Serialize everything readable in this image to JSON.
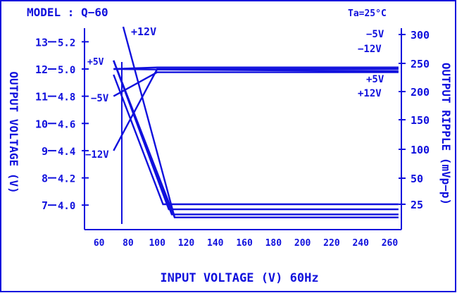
{
  "page": {
    "model": "MODEL : Q−60",
    "ambient": "Ta=25°C",
    "xlabel": "INPUT  VOLTAGE  (V)  60Hz",
    "ylabel_left": "OUTPUT  VOLTAGE  (V)",
    "ylabel_right": "OUTPUT  RIPPLE  (mVp−p)",
    "annotations": {
      "v12_top": "+12V",
      "v5_left": "+5V",
      "vm5_left": "−5V",
      "vm12_left": "−12V",
      "vm5_right": "−5V",
      "vm12_right": "−12V",
      "v5_right": "+5V",
      "v12_right": "+12V"
    }
  },
  "colors": {
    "ink": "#1010dd",
    "background": "#ffffff"
  },
  "chart_data": {
    "type": "line",
    "xlabel": "INPUT  VOLTAGE  (V)  60Hz",
    "x_ticks": [
      "60",
      "80",
      "100",
      "120",
      "140",
      "160",
      "180",
      "200",
      "220",
      "240",
      "260"
    ],
    "xlim": [
      50,
      268
    ],
    "y_outer_ticks": [
      "7",
      "8",
      "9",
      "10",
      "11",
      "12",
      "13"
    ],
    "y_inner_ticks": [
      "4.0",
      "4.2",
      "4.4",
      "4.6",
      "4.8",
      "5.0",
      "5.2"
    ],
    "ylim_outer": [
      6.1,
      13.5
    ],
    "y_right_ticks": [
      "25",
      "50",
      "100",
      "150",
      "200",
      "250",
      "300"
    ],
    "output_voltage_series": [
      {
        "name": "+12V",
        "x": [
          70,
          100,
          266
        ],
        "y": [
          12.0,
          11.98,
          11.92
        ]
      },
      {
        "name": "+5V",
        "x": [
          70,
          100,
          266
        ],
        "y": [
          12.0,
          12.06,
          12.06
        ]
      },
      {
        "name": "−5V",
        "x": [
          70,
          100,
          266
        ],
        "y": [
          11.0,
          11.88,
          11.88
        ]
      },
      {
        "name": "−12V",
        "x": [
          70,
          100,
          266
        ],
        "y": [
          9.0,
          12.0,
          12.0
        ]
      }
    ],
    "ripple_series": [
      {
        "name": "−5V",
        "x": [
          70,
          104,
          266
        ],
        "y": [
          230,
          25,
          25
        ]
      },
      {
        "name": "−12V",
        "x": [
          70,
          108,
          266
        ],
        "y": [
          255,
          20,
          20
        ]
      },
      {
        "name": "+5V",
        "x": [
          70,
          110,
          266
        ],
        "y": [
          255,
          15,
          15
        ]
      },
      {
        "name": "+12V",
        "x": [
          70,
          112,
          266
        ],
        "y": [
          255,
          12,
          12
        ]
      }
    ]
  }
}
